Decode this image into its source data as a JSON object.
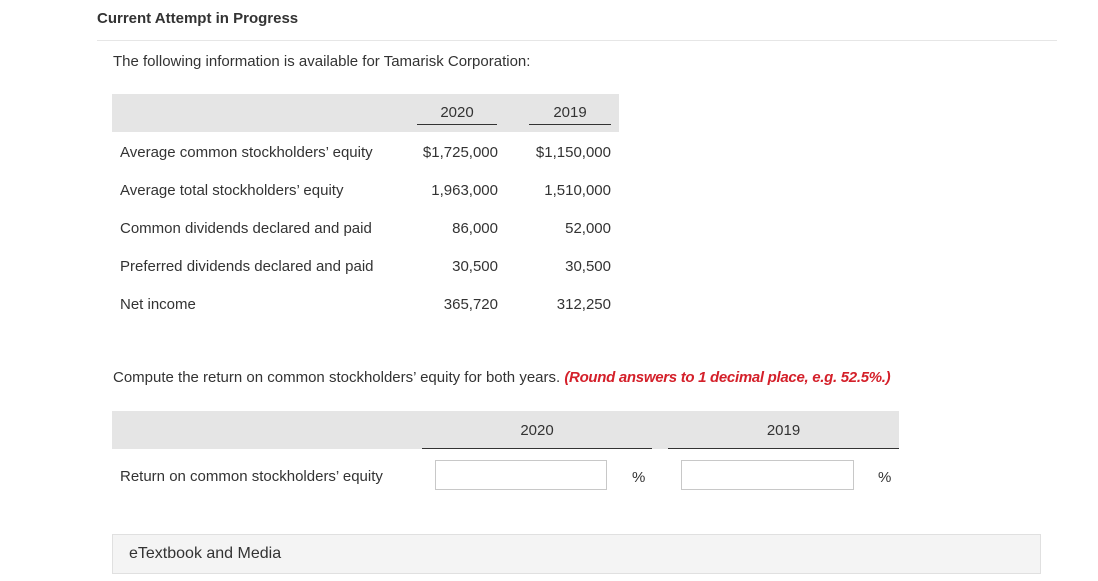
{
  "attempt_title": "Current Attempt in Progress",
  "intro": "The following information is available for Tamarisk Corporation:",
  "table1": {
    "years": [
      "2020",
      "2019"
    ],
    "rows": [
      {
        "label": "Average common stockholders’ equity",
        "v2020": "$1,725,000",
        "v2019": "$1,150,000"
      },
      {
        "label": "Average total stockholders’ equity",
        "v2020": "1,963,000",
        "v2019": "1,510,000"
      },
      {
        "label": "Common dividends declared and paid",
        "v2020": "86,000",
        "v2019": "52,000"
      },
      {
        "label": "Preferred dividends declared and paid",
        "v2020": "30,500",
        "v2019": "30,500"
      },
      {
        "label": "Net income",
        "v2020": "365,720",
        "v2019": "312,250"
      }
    ]
  },
  "question": {
    "text": "Compute the return on common stockholders’ equity for both years.",
    "hint": "(Round answers to 1 decimal place, e.g. 52.5%.)"
  },
  "table2": {
    "years": [
      "2020",
      "2019"
    ],
    "row_label": "Return on common stockholders’ equity",
    "unit": "%",
    "input_2020": "",
    "input_2019": ""
  },
  "etextbook_label": "eTextbook and Media"
}
